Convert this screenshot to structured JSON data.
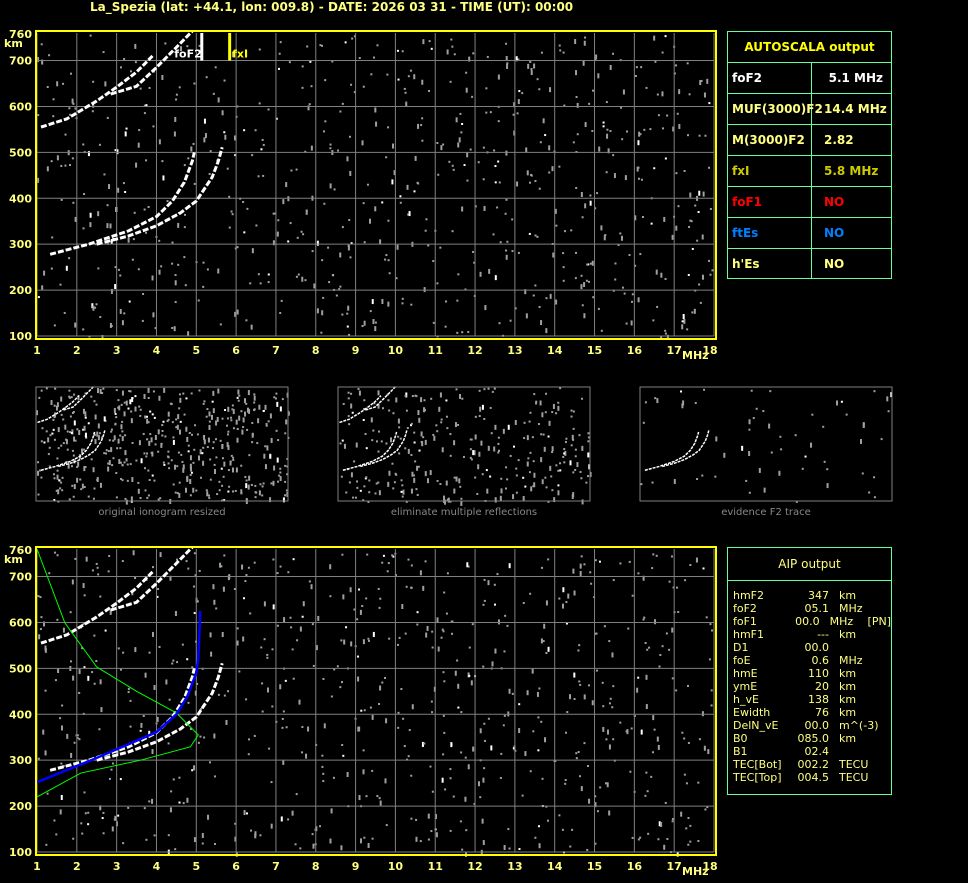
{
  "title": "La_Spezia (lat: +44.1, lon: 009.8) - DATE: 2026 03 31 - TIME (UT): 00:00",
  "autoscala": {
    "header": "AUTOSCALA output",
    "rows": [
      {
        "key": "foF2",
        "value": "5.1 MHz",
        "color": "#ffffff"
      },
      {
        "key": "MUF(3000)F2",
        "value": "14.4 MHz",
        "color": "#ffff80"
      },
      {
        "key": "M(3000)F2",
        "value": "2.82",
        "color": "#ffff80"
      },
      {
        "key": "fxI",
        "value": "5.8 MHz",
        "color": "#cccc00"
      },
      {
        "key": "foF1",
        "value": "NO",
        "color": "#ff0000"
      },
      {
        "key": "ftEs",
        "value": "NO",
        "color": "#0080ff"
      },
      {
        "key": "h'Es",
        "value": "NO",
        "color": "#ffff80"
      }
    ]
  },
  "aip": {
    "header": "AIP output",
    "rows": [
      [
        "hmF2",
        "347",
        "km",
        ""
      ],
      [
        "foF2",
        "05.1",
        "MHz",
        ""
      ],
      [
        "foF1",
        "00.0",
        "MHz",
        "[PN]"
      ],
      [
        "hmF1",
        "---",
        "km",
        ""
      ],
      [
        "D1",
        "00.0",
        "",
        ""
      ],
      [
        "foE",
        "0.6",
        "MHz",
        ""
      ],
      [
        "hmE",
        "110",
        "km",
        ""
      ],
      [
        "ymE",
        "20",
        "km",
        ""
      ],
      [
        "h_vE",
        "138",
        "km",
        ""
      ],
      [
        "Ewidth",
        "76",
        "km",
        ""
      ],
      [
        "DelN_vE",
        "00.0",
        "m^(-3)",
        ""
      ],
      [
        "B0",
        "085.0",
        "km",
        ""
      ],
      [
        "B1",
        "02.4",
        "",
        ""
      ],
      [
        "TEC[Bot]",
        "002.2",
        "TECU",
        ""
      ],
      [
        "TEC[Top]",
        "004.5",
        "TECU",
        ""
      ]
    ]
  },
  "captions": [
    "original ionogram resized",
    "eliminate multiple reflections",
    "evidence F2 trace"
  ],
  "chart_data": {
    "type": "scatter",
    "xlabel": "MHz",
    "ylabel": "km",
    "xlim": [
      1,
      18
    ],
    "ylim": [
      100,
      760
    ],
    "xticks": [
      "1",
      "2",
      "3",
      "4",
      "5",
      "6",
      "7",
      "8",
      "9",
      "10",
      "11",
      "12",
      "13",
      "14",
      "15",
      "16",
      "17",
      "18"
    ],
    "yticks": [
      "100",
      "200",
      "300",
      "400",
      "500",
      "600",
      "700",
      "760"
    ],
    "grid": true,
    "markers": [
      {
        "label": "foF2",
        "x": 5.1,
        "color": "#ffffff"
      },
      {
        "label": "fxI",
        "x": 5.8,
        "color": "#ffff00"
      }
    ],
    "traces": {
      "o_trace": [
        [
          1.33,
          278
        ],
        [
          2.3,
          300
        ],
        [
          3.3,
          329
        ],
        [
          4.0,
          360
        ],
        [
          4.4,
          394
        ],
        [
          4.7,
          435
        ],
        [
          4.9,
          481
        ],
        [
          4.95,
          500
        ]
      ],
      "x_trace": [
        [
          2.5,
          300
        ],
        [
          3.3,
          318
        ],
        [
          4.0,
          340
        ],
        [
          4.6,
          368
        ],
        [
          5.0,
          394
        ],
        [
          5.4,
          446
        ],
        [
          5.55,
          480
        ],
        [
          5.65,
          511
        ]
      ],
      "multi_1": [
        [
          1.1,
          555
        ],
        [
          1.75,
          573
        ],
        [
          2.5,
          612
        ],
        [
          3.0,
          642
        ],
        [
          3.5,
          675
        ],
        [
          3.9,
          710
        ]
      ],
      "multi_2": [
        [
          2.85,
          627
        ],
        [
          3.5,
          644
        ],
        [
          4.0,
          685
        ],
        [
          4.4,
          720
        ],
        [
          4.9,
          764
        ]
      ]
    },
    "aip_profile": [
      [
        1.0,
        760
      ],
      [
        1.7,
        599
      ],
      [
        2.5,
        503
      ],
      [
        3.5,
        450
      ],
      [
        4.5,
        403
      ],
      [
        5.05,
        355
      ],
      [
        4.85,
        329
      ],
      [
        3.6,
        300
      ],
      [
        2.1,
        272
      ],
      [
        1.0,
        220
      ]
    ],
    "aip_fit": [
      [
        1.0,
        252
      ],
      [
        2.5,
        305
      ],
      [
        4.0,
        361
      ],
      [
        4.5,
        400
      ],
      [
        4.77,
        438
      ],
      [
        5.0,
        490
      ],
      [
        5.05,
        522
      ],
      [
        5.1,
        625
      ]
    ],
    "colors": {
      "axis": "#ffff00",
      "grid": "#808080",
      "profile": "#00ff00",
      "fit": "#0000ff",
      "trace": "#ffffff",
      "noise": "#a0a0a0"
    }
  }
}
